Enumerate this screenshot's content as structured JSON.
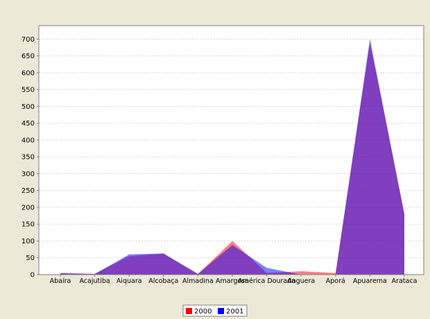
{
  "chart_data": {
    "type": "area",
    "categories": [
      "Abaíra",
      "Acajutiba",
      "Aiquara",
      "Alcobaça",
      "Almadina",
      "Amargosa",
      "América Dourada",
      "Anguera",
      "Aporá",
      "Apuarema",
      "Arataca"
    ],
    "series": [
      {
        "name": "2000",
        "color": "#ff0000",
        "values": [
          5,
          2,
          55,
          62,
          2,
          100,
          5,
          10,
          5,
          690,
          180
        ]
      },
      {
        "name": "2001",
        "color": "#0000ff",
        "values": [
          4,
          2,
          60,
          63,
          2,
          88,
          20,
          0,
          0,
          700,
          180
        ]
      }
    ],
    "ylim": [
      0,
      740
    ],
    "yticks": [
      0,
      50,
      100,
      150,
      200,
      250,
      300,
      350,
      400,
      450,
      500,
      550,
      600,
      650,
      700
    ],
    "grid": true,
    "legend_position": "bottom"
  }
}
